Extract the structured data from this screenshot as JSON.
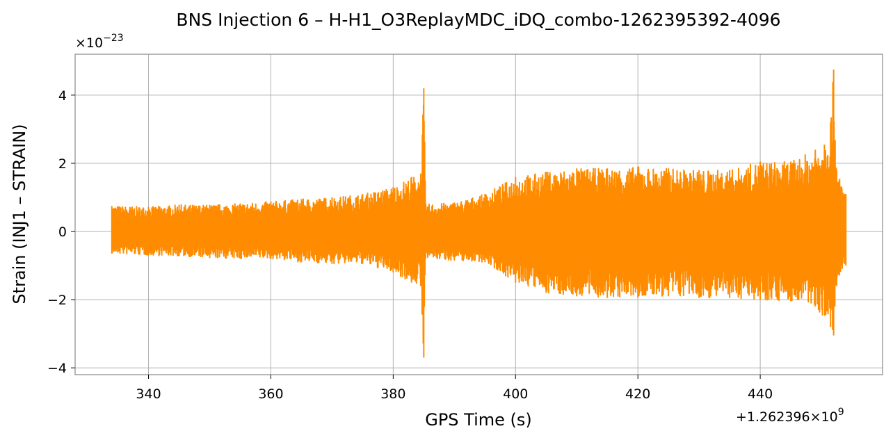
{
  "chart_data": {
    "type": "line",
    "title": "BNS Injection 6 – H-H1_O3ReplayMDC_iDQ_combo-1262395392-4096",
    "xlabel": "GPS Time (s)",
    "ylabel": "Strain (INJ1 – STRAIN)",
    "x_offset_label": "+1.262396×10",
    "x_offset_exponent": "9",
    "y_scale_label": "×10",
    "y_scale_exponent": "−23",
    "xlim": [
      328,
      460
    ],
    "ylim": [
      -4.2,
      5.2
    ],
    "x_ticks": [
      340,
      360,
      380,
      400,
      420,
      440
    ],
    "x_tick_labels": [
      "340",
      "360",
      "380",
      "400",
      "420",
      "440"
    ],
    "y_ticks": [
      -4,
      -2,
      0,
      2,
      4
    ],
    "y_tick_labels": [
      "−4",
      "−2",
      "0",
      "2",
      "4"
    ],
    "grid": true,
    "series": [
      {
        "color": "#ff8c00",
        "envelope": [
          {
            "x": 334.0,
            "max": 0.75,
            "min": -0.65
          },
          {
            "x": 340.0,
            "max": 0.72,
            "min": -0.7
          },
          {
            "x": 345.0,
            "max": 0.78,
            "min": -0.72
          },
          {
            "x": 350.0,
            "max": 0.78,
            "min": -0.78
          },
          {
            "x": 355.0,
            "max": 0.82,
            "min": -0.8
          },
          {
            "x": 360.0,
            "max": 0.88,
            "min": -0.8
          },
          {
            "x": 365.0,
            "max": 0.95,
            "min": -0.9
          },
          {
            "x": 370.0,
            "max": 1.0,
            "min": -0.95
          },
          {
            "x": 375.0,
            "max": 1.1,
            "min": -0.95
          },
          {
            "x": 380.0,
            "max": 1.3,
            "min": -1.2
          },
          {
            "x": 383.0,
            "max": 1.6,
            "min": -1.5
          },
          {
            "x": 384.5,
            "max": 1.7,
            "min": -1.6
          },
          {
            "x": 385.0,
            "max": 4.2,
            "min": -3.7
          },
          {
            "x": 385.3,
            "max": 0.8,
            "min": -0.8
          },
          {
            "x": 390.0,
            "max": 0.85,
            "min": -0.85
          },
          {
            "x": 395.0,
            "max": 1.1,
            "min": -0.9
          },
          {
            "x": 400.0,
            "max": 1.6,
            "min": -1.5
          },
          {
            "x": 405.0,
            "max": 1.75,
            "min": -1.8
          },
          {
            "x": 410.0,
            "max": 1.85,
            "min": -1.9
          },
          {
            "x": 415.0,
            "max": 1.85,
            "min": -1.95
          },
          {
            "x": 420.0,
            "max": 1.9,
            "min": -1.95
          },
          {
            "x": 425.0,
            "max": 1.85,
            "min": -1.9
          },
          {
            "x": 430.0,
            "max": 1.8,
            "min": -1.95
          },
          {
            "x": 435.0,
            "max": 1.8,
            "min": -1.95
          },
          {
            "x": 440.0,
            "max": 2.05,
            "min": -2.0
          },
          {
            "x": 445.0,
            "max": 2.05,
            "min": -2.05
          },
          {
            "x": 449.0,
            "max": 2.4,
            "min": -2.2
          },
          {
            "x": 451.5,
            "max": 3.2,
            "min": -2.8
          },
          {
            "x": 452.0,
            "max": 4.75,
            "min": -3.05
          },
          {
            "x": 452.5,
            "max": 1.8,
            "min": -1.6
          },
          {
            "x": 454.0,
            "max": 1.1,
            "min": -1.0
          }
        ]
      }
    ]
  }
}
